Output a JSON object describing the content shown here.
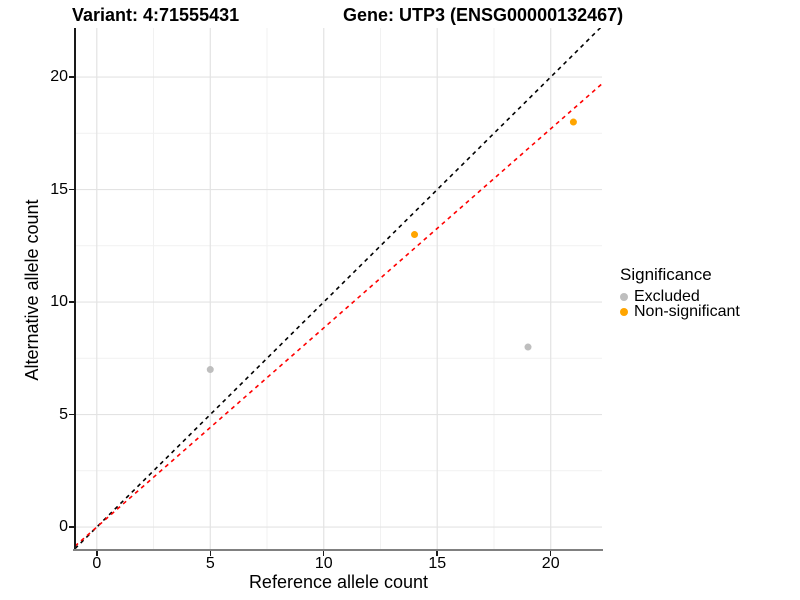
{
  "titles": {
    "variant": "Variant: 4:71555431",
    "gene": "Gene: UTP3 (ENSG00000132467)"
  },
  "legend": {
    "title": "Significance",
    "items": [
      {
        "label": "Excluded",
        "color": "#BEBEBE"
      },
      {
        "label": "Non-significant",
        "color": "#FFA500"
      }
    ]
  },
  "colors": {
    "major_grid": "#E3E3E3",
    "minor_grid": "#F1F1F1",
    "identity_line": "#000000",
    "fit_line": "#FF0000",
    "axis_line_left": "#1A1A1A",
    "axis_line_bottom": "#808080"
  },
  "chart_data": {
    "type": "scatter",
    "title": "Variant: 4:71555431   Gene: UTP3 (ENSG00000132467)",
    "xlabel": "Reference allele count",
    "ylabel": "Alternative allele count",
    "xlim": [
      -0.96,
      22.26
    ],
    "ylim": [
      -1.02,
      22.18
    ],
    "x_major_ticks": [
      0,
      5,
      10,
      15,
      20
    ],
    "y_major_ticks": [
      0,
      5,
      10,
      15,
      20
    ],
    "x_minor_ticks": [
      2.5,
      7.5,
      12.5,
      17.5
    ],
    "y_minor_ticks": [
      2.5,
      7.5,
      12.5,
      17.5
    ],
    "grid": true,
    "legend_position": "right",
    "legend_title": "Significance",
    "series": [
      {
        "name": "Excluded",
        "color": "#BEBEBE",
        "points": [
          [
            5,
            7
          ],
          [
            19,
            8
          ]
        ]
      },
      {
        "name": "Non-significant",
        "color": "#FFA500",
        "points": [
          [
            14,
            13
          ],
          [
            21,
            18
          ]
        ]
      }
    ],
    "lines": [
      {
        "name": "identity-line",
        "color": "#000000",
        "dashed": true,
        "slope": 1.0,
        "intercept": 0
      },
      {
        "name": "fit-line",
        "color": "#FF0000",
        "dashed": true,
        "slope": 0.885,
        "intercept": 0
      }
    ],
    "point_radius": 3.5
  }
}
